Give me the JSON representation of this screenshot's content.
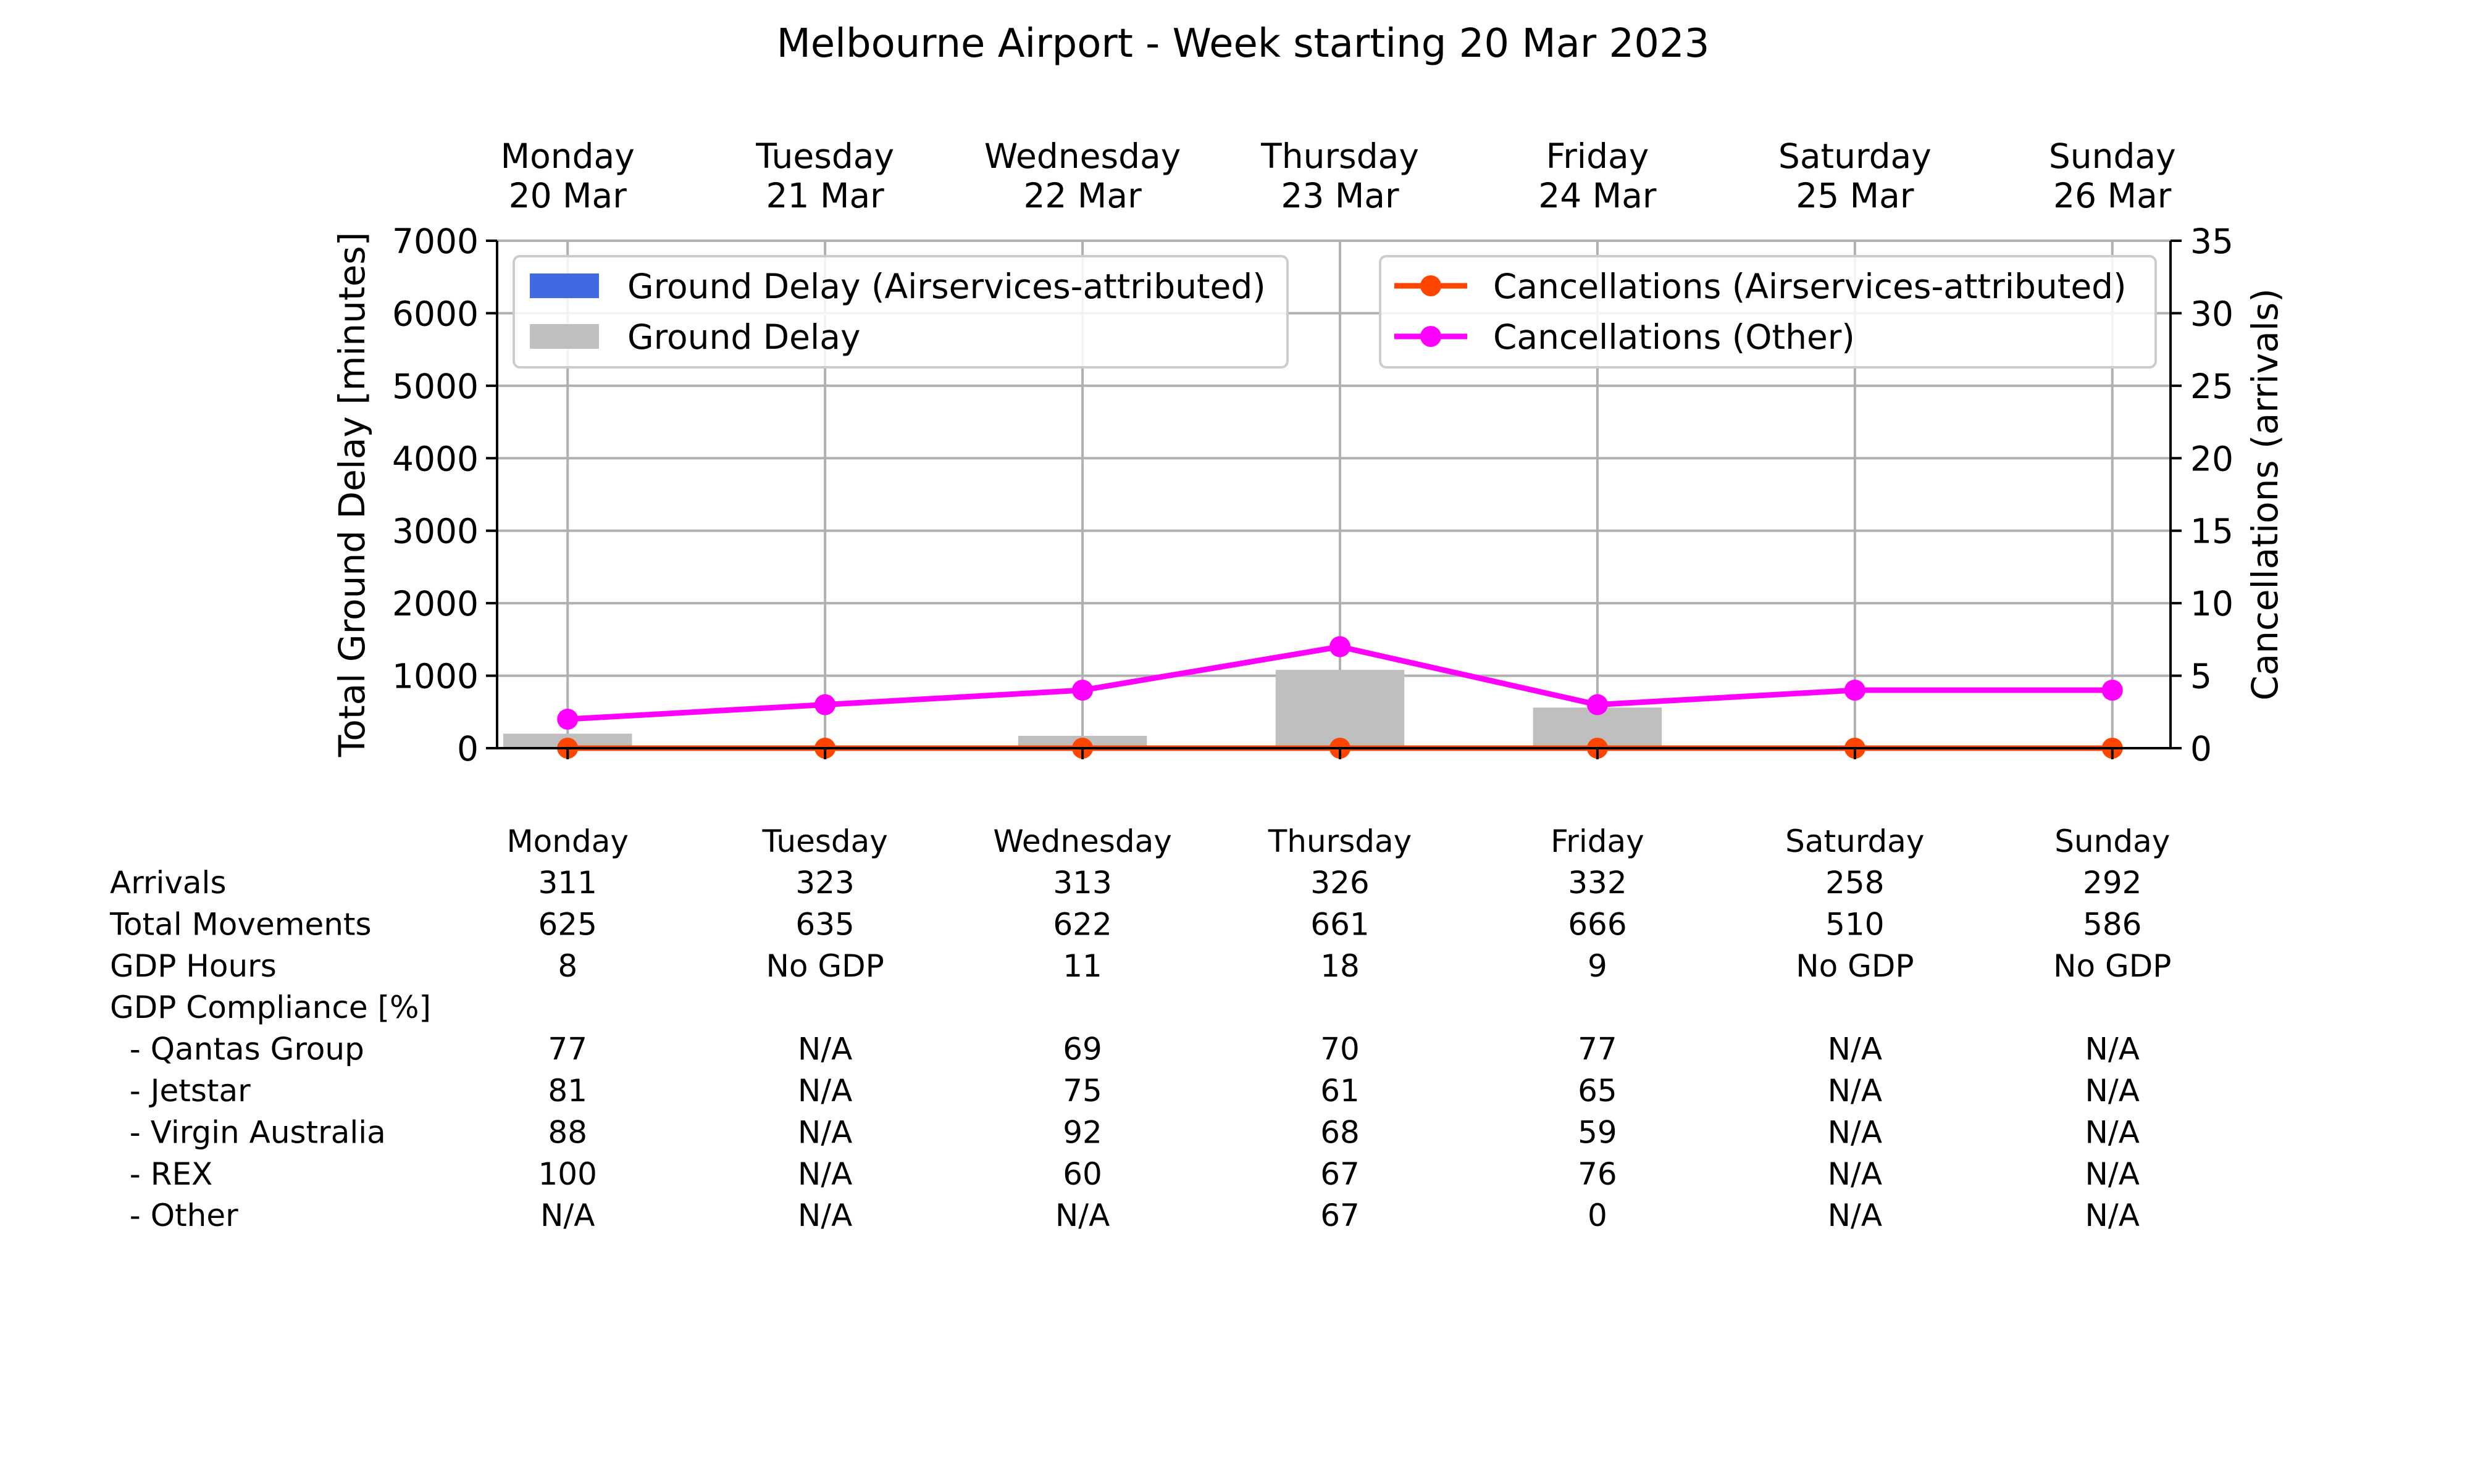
{
  "chart_data": {
    "type": "bar",
    "title": "Melbourne Airport - Week starting 20 Mar 2023",
    "days": [
      {
        "day": "Monday",
        "date": "20 Mar"
      },
      {
        "day": "Tuesday",
        "date": "21 Mar"
      },
      {
        "day": "Wednesday",
        "date": "22 Mar"
      },
      {
        "day": "Thursday",
        "date": "23 Mar"
      },
      {
        "day": "Friday",
        "date": "24 Mar"
      },
      {
        "day": "Saturday",
        "date": "25 Mar"
      },
      {
        "day": "Sunday",
        "date": "26 Mar"
      }
    ],
    "ylabel_left": "Total Ground Delay [minutes]",
    "ylabel_right": "Cancellations (arrivals)",
    "ylim_left": [
      0,
      7000
    ],
    "ylim_right": [
      0,
      35
    ],
    "yticks_left": [
      0,
      1000,
      2000,
      3000,
      4000,
      5000,
      6000,
      7000
    ],
    "yticks_right": [
      0,
      5,
      10,
      15,
      20,
      25,
      30,
      35
    ],
    "grid": true,
    "bar_series": [
      {
        "name": "Ground Delay (Airservices-attributed)",
        "color": "#4169e1",
        "values": [
          0,
          0,
          0,
          0,
          0,
          0,
          0
        ]
      },
      {
        "name": "Ground Delay",
        "color": "#bfbfbf",
        "values": [
          200,
          0,
          170,
          1080,
          560,
          0,
          0
        ]
      }
    ],
    "line_series": [
      {
        "name": "Cancellations (Airservices-attributed)",
        "color": "#ff4500",
        "values": [
          0,
          0,
          0,
          0,
          0,
          0,
          0
        ]
      },
      {
        "name": "Cancellations (Other)",
        "color": "#ff00ff",
        "values": [
          2,
          3,
          4,
          7,
          3,
          4,
          4
        ]
      }
    ],
    "legend_left_position": "top-left",
    "legend_right_position": "top-right",
    "table": {
      "header": [
        "Monday",
        "Tuesday",
        "Wednesday",
        "Thursday",
        "Friday",
        "Saturday",
        "Sunday"
      ],
      "rows": [
        {
          "label": "Arrivals",
          "values": [
            "311",
            "323",
            "313",
            "326",
            "332",
            "258",
            "292"
          ]
        },
        {
          "label": "Total Movements",
          "values": [
            "625",
            "635",
            "622",
            "661",
            "666",
            "510",
            "586"
          ]
        },
        {
          "label": "GDP Hours",
          "values": [
            "8",
            "No GDP",
            "11",
            "18",
            "9",
            "No GDP",
            "No GDP"
          ]
        },
        {
          "label": "GDP Compliance [%]",
          "values": [
            "",
            "",
            "",
            "",
            "",
            "",
            ""
          ]
        },
        {
          "label": "  - Qantas Group",
          "values": [
            "77",
            "N/A",
            "69",
            "70",
            "77",
            "N/A",
            "N/A"
          ]
        },
        {
          "label": "  - Jetstar",
          "values": [
            "81",
            "N/A",
            "75",
            "61",
            "65",
            "N/A",
            "N/A"
          ]
        },
        {
          "label": "  - Virgin Australia",
          "values": [
            "88",
            "N/A",
            "92",
            "68",
            "59",
            "N/A",
            "N/A"
          ]
        },
        {
          "label": "  - REX",
          "values": [
            "100",
            "N/A",
            "60",
            "67",
            "76",
            "N/A",
            "N/A"
          ]
        },
        {
          "label": "  - Other",
          "values": [
            "N/A",
            "N/A",
            "N/A",
            "67",
            "0",
            "N/A",
            "N/A"
          ]
        }
      ]
    }
  }
}
